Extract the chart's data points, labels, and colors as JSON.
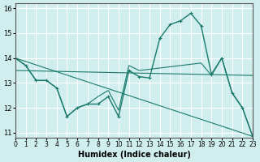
{
  "xlabel": "Humidex (Indice chaleur)",
  "ylabel": "",
  "bg_color": "#d0eeee",
  "grid_color": "#ffffff",
  "line_color": "#1a7a6a",
  "xlim": [
    0,
    23
  ],
  "ylim": [
    10.8,
    16.2
  ],
  "yticks": [
    11,
    12,
    13,
    14,
    15,
    16
  ],
  "xticks": [
    0,
    1,
    2,
    3,
    4,
    5,
    6,
    7,
    8,
    9,
    10,
    11,
    12,
    13,
    14,
    15,
    16,
    17,
    18,
    19,
    20,
    21,
    22,
    23
  ],
  "line1_x": [
    0,
    1,
    2,
    3,
    4,
    5,
    6,
    7,
    8,
    9,
    10,
    11,
    12,
    13,
    14,
    15,
    16,
    17,
    18,
    19,
    20,
    21,
    22,
    23
  ],
  "line1_y": [
    14.0,
    13.7,
    13.1,
    13.1,
    12.8,
    11.65,
    12.0,
    12.15,
    12.15,
    12.45,
    11.65,
    13.5,
    13.25,
    13.2,
    14.8,
    15.35,
    15.5,
    15.8,
    15.3,
    13.35,
    14.0,
    12.6,
    12.0,
    10.85
  ],
  "line2_x": [
    0,
    1,
    2,
    3,
    4,
    5,
    6,
    7,
    8,
    9,
    10,
    11,
    12,
    13,
    14,
    15,
    16,
    17,
    18,
    19,
    20,
    21,
    22,
    23
  ],
  "line2_y": [
    14.0,
    13.7,
    13.1,
    13.1,
    12.8,
    11.65,
    12.0,
    12.15,
    12.45,
    12.7,
    11.9,
    13.7,
    13.5,
    13.55,
    13.6,
    13.65,
    13.7,
    13.75,
    13.8,
    13.3,
    14.0,
    12.6,
    12.0,
    10.85
  ]
}
